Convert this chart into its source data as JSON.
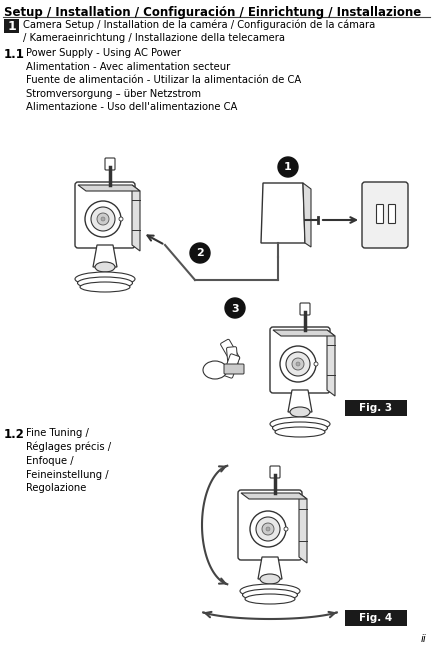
{
  "title": "Setup / Installation / Configuración / Einrichtung / Installazione",
  "section1_num": "1",
  "section1_text": "Camera Setup / Installation de la caméra / Configuración de la cámara\n/ Kameraeinrichtung / Installazione della telecamera",
  "section11_num": "1.1",
  "section11_text": "Power Supply - Using AC Power\nAlimentation - Avec alimentation secteur\nFuente de alimentación - Utilizar la alimentación de CA\nStromversorgung – über Netzstrom\nAlimentazione - Uso dell'alimentazione CA",
  "section12_num": "1.2",
  "section12_text": "Fine Tuning /\nRéglages précis /\nEnfoque /\nFeineinstellung /\nRegolazione",
  "fig3_label": "Fig. 3",
  "fig4_label": "Fig. 4",
  "page_num": "ii",
  "bg_color": "#ffffff",
  "text_color": "#000000",
  "box_bg": "#1a1a1a",
  "box_text": "#ffffff"
}
